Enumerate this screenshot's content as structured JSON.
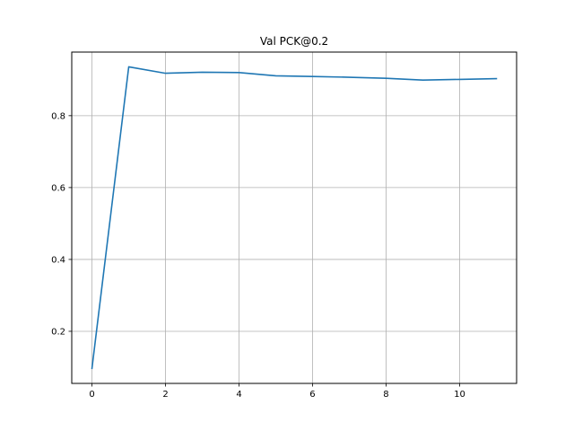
{
  "chart_data": {
    "type": "line",
    "title": "Val PCK@0.2",
    "xlabel": "",
    "ylabel": "",
    "grid": true,
    "xlim": [
      -0.55,
      11.55
    ],
    "ylim": [
      0.055,
      0.977
    ],
    "xticks": [
      0,
      2,
      4,
      6,
      8,
      10
    ],
    "yticks": [
      0.2,
      0.4,
      0.6,
      0.8
    ],
    "xtick_labels": [
      "0",
      "2",
      "4",
      "6",
      "8",
      "10"
    ],
    "ytick_labels": [
      "0.2",
      "0.4",
      "0.6",
      "0.8"
    ],
    "series": [
      {
        "color": "#1f77b4",
        "x": [
          0,
          1,
          2,
          3,
          4,
          5,
          6,
          7,
          8,
          9,
          10,
          11
        ],
        "y": [
          0.097,
          0.936,
          0.918,
          0.921,
          0.92,
          0.911,
          0.909,
          0.907,
          0.904,
          0.899,
          0.901,
          0.903
        ]
      }
    ]
  }
}
